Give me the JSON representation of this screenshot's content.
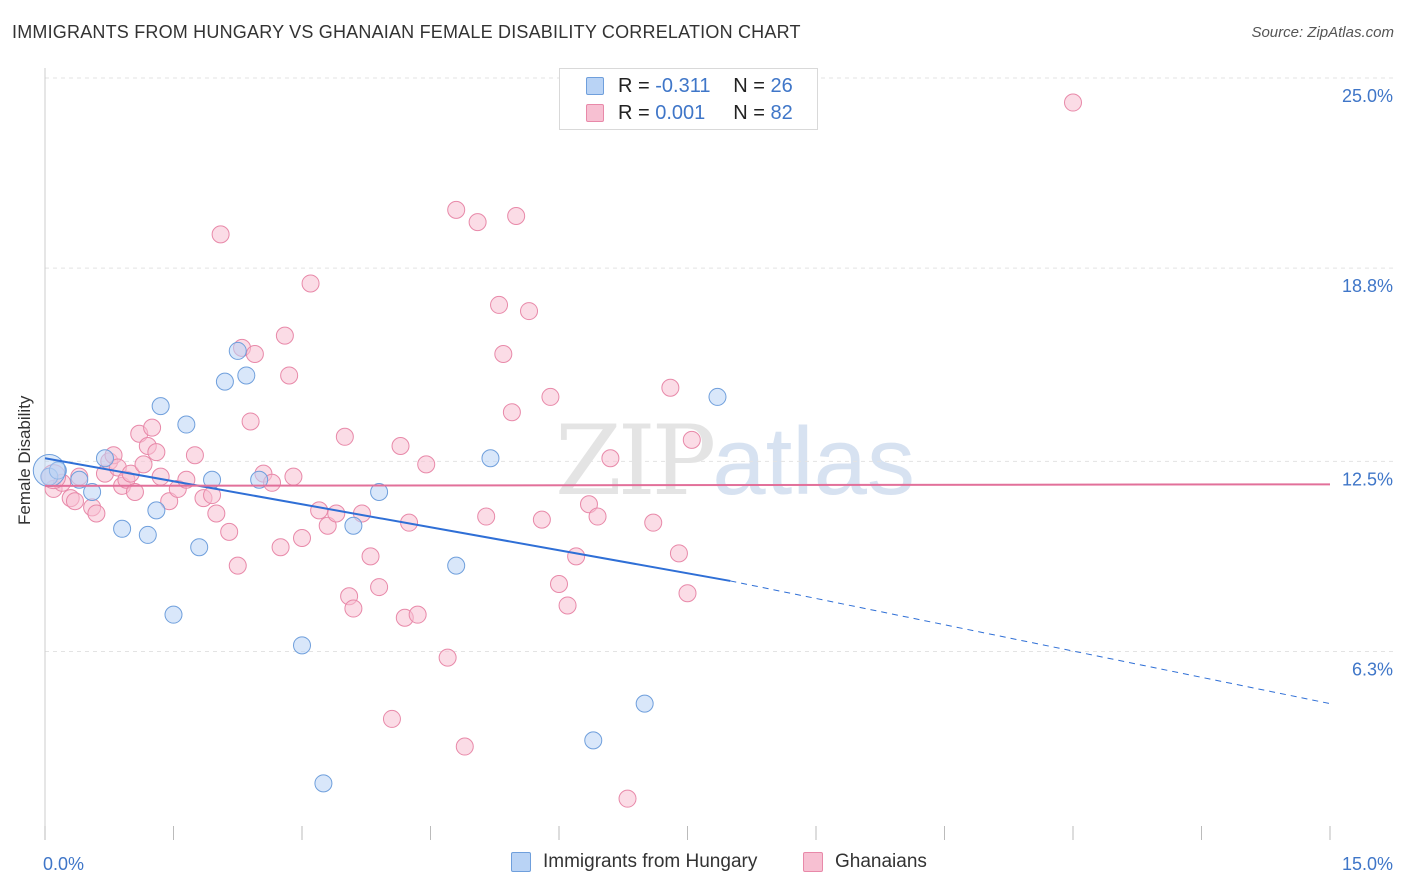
{
  "header": {
    "title": "IMMIGRANTS FROM HUNGARY VS GHANAIAN FEMALE DISABILITY CORRELATION CHART",
    "source": "Source: ZipAtlas.com"
  },
  "watermark": {
    "zip": "ZIP",
    "atlas": "atlas"
  },
  "legend_top": {
    "rows": [
      {
        "r_label": "R =",
        "r_value": "-0.311",
        "n_label": "N =",
        "n_value": "26"
      },
      {
        "r_label": "R =",
        "r_value": "0.001",
        "n_label": "N =",
        "n_value": "82"
      }
    ]
  },
  "legend_bottom": {
    "items": [
      {
        "label": "Immigrants from Hungary"
      },
      {
        "label": "Ghanaians"
      }
    ]
  },
  "colors": {
    "blue_fill": "#b9d3f5",
    "blue_stroke": "#6f9fdc",
    "blue_line": "#2f6fd6",
    "pink_fill": "#f7c0d2",
    "pink_stroke": "#e889a9",
    "pink_line": "#e2709a",
    "tick_text": "#3f76c8"
  },
  "chart_data": {
    "type": "scatter",
    "title": "IMMIGRANTS FROM HUNGARY VS GHANAIAN FEMALE DISABILITY CORRELATION CHART",
    "xlabel": "",
    "ylabel": "Female Disability",
    "xlim": [
      0,
      15
    ],
    "ylim": [
      0,
      26
    ],
    "x_tick_labels": [
      "0.0%",
      "15.0%"
    ],
    "y_ticks": [
      {
        "value": 6.3,
        "label": "6.3%"
      },
      {
        "value": 12.5,
        "label": "12.5%"
      },
      {
        "value": 18.8,
        "label": "18.8%"
      },
      {
        "value": 25.0,
        "label": "25.0%"
      }
    ],
    "grid": "horizontal dashed",
    "legend": "top-center",
    "series": [
      {
        "name": "Immigrants from Hungary",
        "color": "#b9d3f5",
        "points": [
          [
            0.05,
            12.0
          ],
          [
            0.15,
            12.2
          ],
          [
            0.4,
            11.9
          ],
          [
            0.55,
            11.5
          ],
          [
            0.7,
            12.6
          ],
          [
            0.9,
            10.3
          ],
          [
            1.2,
            10.1
          ],
          [
            1.3,
            10.9
          ],
          [
            1.35,
            14.3
          ],
          [
            1.5,
            7.5
          ],
          [
            1.65,
            13.7
          ],
          [
            1.8,
            9.7
          ],
          [
            1.95,
            11.9
          ],
          [
            2.1,
            15.1
          ],
          [
            2.25,
            16.1
          ],
          [
            2.35,
            15.3
          ],
          [
            2.5,
            11.9
          ],
          [
            3.0,
            6.5
          ],
          [
            3.25,
            2.0
          ],
          [
            3.6,
            10.4
          ],
          [
            3.9,
            11.5
          ],
          [
            4.8,
            9.1
          ],
          [
            5.2,
            12.6
          ],
          [
            6.4,
            3.4
          ],
          [
            7.0,
            4.6
          ],
          [
            7.85,
            14.6
          ]
        ],
        "trend": {
          "x0": 0.0,
          "y0": 12.6,
          "x1": 8.0,
          "y1": 8.6,
          "dashed_to_x": 15.0,
          "dashed_to_y": 4.6
        }
      },
      {
        "name": "Ghanaians",
        "color": "#f7c0d2",
        "points": [
          [
            0.1,
            11.6
          ],
          [
            0.2,
            11.8
          ],
          [
            0.3,
            11.3
          ],
          [
            0.35,
            11.2
          ],
          [
            0.4,
            12.0
          ],
          [
            0.55,
            11.0
          ],
          [
            0.6,
            10.8
          ],
          [
            0.7,
            12.1
          ],
          [
            0.75,
            12.5
          ],
          [
            0.8,
            12.7
          ],
          [
            0.85,
            12.3
          ],
          [
            0.9,
            11.7
          ],
          [
            0.95,
            11.9
          ],
          [
            1.0,
            12.1
          ],
          [
            1.05,
            11.5
          ],
          [
            1.1,
            13.4
          ],
          [
            1.15,
            12.4
          ],
          [
            1.2,
            13.0
          ],
          [
            1.25,
            13.6
          ],
          [
            1.3,
            12.8
          ],
          [
            1.35,
            12.0
          ],
          [
            1.45,
            11.2
          ],
          [
            1.55,
            11.6
          ],
          [
            1.65,
            11.9
          ],
          [
            1.75,
            12.7
          ],
          [
            1.85,
            11.3
          ],
          [
            1.95,
            11.4
          ],
          [
            2.0,
            10.8
          ],
          [
            2.05,
            19.9
          ],
          [
            2.15,
            10.2
          ],
          [
            2.25,
            9.1
          ],
          [
            2.3,
            16.2
          ],
          [
            2.4,
            13.8
          ],
          [
            2.45,
            16.0
          ],
          [
            2.55,
            12.1
          ],
          [
            2.65,
            11.8
          ],
          [
            2.75,
            9.7
          ],
          [
            2.8,
            16.6
          ],
          [
            2.85,
            15.3
          ],
          [
            2.9,
            12.0
          ],
          [
            3.0,
            10.0
          ],
          [
            3.1,
            18.3
          ],
          [
            3.2,
            10.9
          ],
          [
            3.3,
            10.4
          ],
          [
            3.4,
            10.8
          ],
          [
            3.5,
            13.3
          ],
          [
            3.55,
            8.1
          ],
          [
            3.6,
            7.7
          ],
          [
            3.7,
            10.8
          ],
          [
            3.8,
            9.4
          ],
          [
            3.9,
            8.4
          ],
          [
            4.05,
            4.1
          ],
          [
            4.15,
            13.0
          ],
          [
            4.2,
            7.4
          ],
          [
            4.25,
            10.5
          ],
          [
            4.35,
            7.5
          ],
          [
            4.45,
            12.4
          ],
          [
            4.7,
            6.1
          ],
          [
            4.8,
            20.7
          ],
          [
            4.9,
            3.2
          ],
          [
            5.05,
            20.3
          ],
          [
            5.15,
            10.7
          ],
          [
            5.3,
            17.6
          ],
          [
            5.35,
            16.0
          ],
          [
            5.45,
            14.1
          ],
          [
            5.5,
            20.5
          ],
          [
            5.65,
            17.4
          ],
          [
            5.8,
            10.6
          ],
          [
            5.9,
            14.6
          ],
          [
            6.0,
            8.5
          ],
          [
            6.1,
            7.8
          ],
          [
            6.2,
            9.4
          ],
          [
            6.35,
            11.1
          ],
          [
            6.45,
            10.7
          ],
          [
            6.6,
            12.6
          ],
          [
            6.8,
            1.5
          ],
          [
            7.1,
            10.5
          ],
          [
            7.3,
            14.9
          ],
          [
            7.4,
            9.5
          ],
          [
            7.5,
            8.2
          ],
          [
            7.55,
            13.2
          ],
          [
            12.0,
            24.2
          ]
        ],
        "trend": {
          "x0": 0.0,
          "y0": 11.7,
          "x1": 15.0,
          "y1": 11.75
        }
      }
    ]
  }
}
